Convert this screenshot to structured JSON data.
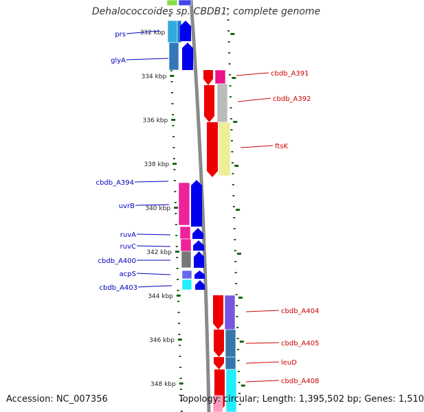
{
  "title": "Dehalococcoides sp. CBDB1, complete genome",
  "footer": {
    "accession": "Accession: NC_007356",
    "topology": "Topology: circular; Length: 1,395,502 bp; Genes: 1,510"
  },
  "colors": {
    "left_label": "#0000bb",
    "right_label": "#cc0000",
    "tick": "#116611",
    "backbone": "#8a8a8a",
    "blue_gene": "#0000ee",
    "red_gene": "#ee0000"
  },
  "ticks": [
    {
      "label": "332 kbp"
    },
    {
      "label": "334 kbp"
    },
    {
      "label": "336 kbp"
    },
    {
      "label": "338 kbp"
    },
    {
      "label": "340 kbp"
    },
    {
      "label": "342 kbp"
    },
    {
      "label": "344 kbp"
    },
    {
      "label": "346 kbp"
    },
    {
      "label": "348 kbp"
    }
  ],
  "left_labels": [
    "prs",
    "glyA",
    "cbdb_A394",
    "uvrB",
    "ruvA",
    "ruvC",
    "cbdb_A400",
    "acpS",
    "cbdb_A403"
  ],
  "right_labels": [
    "cbdb_A391",
    "cbdb_A392",
    "ftsK",
    "cbdb_A404",
    "cbdb_A405",
    "leuD",
    "cbdb_A408"
  ]
}
